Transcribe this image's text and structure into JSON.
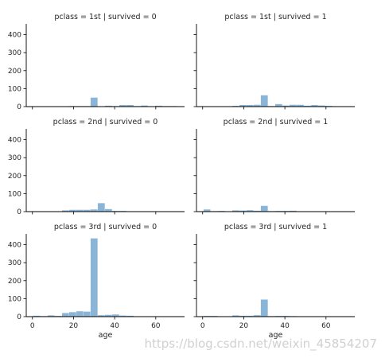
{
  "chart_data": {
    "type": "bar",
    "kind": "faceted-histogram",
    "xlabel": "age",
    "ylabel": "",
    "xlim": [
      -3,
      74
    ],
    "ylim": [
      0,
      460
    ],
    "xticks": [
      0,
      20,
      40,
      60
    ],
    "yticks": [
      0,
      100,
      200,
      300,
      400
    ],
    "bin_width": 3.5,
    "bin_edges": [
      0.42,
      3.9,
      7.4,
      10.9,
      14.4,
      17.9,
      21.4,
      24.8,
      28.3,
      31.8,
      35.3,
      38.8,
      42.3,
      45.8,
      49.3,
      52.8,
      56.2,
      59.7,
      63.2,
      66.7,
      70.2
    ],
    "bar_color": "#8ab5d6",
    "facets": [
      {
        "title": "pclass = 1st | survived = 0",
        "row": 0,
        "col": 0,
        "counts": [
          0,
          0,
          0,
          0,
          2,
          3,
          3,
          3,
          50,
          2,
          5,
          3,
          9,
          9,
          3,
          6,
          2,
          5,
          3,
          3
        ]
      },
      {
        "title": "pclass = 1st | survived = 1",
        "row": 0,
        "col": 1,
        "counts": [
          2,
          0,
          0,
          1,
          4,
          9,
          9,
          10,
          63,
          3,
          14,
          6,
          10,
          10,
          5,
          9,
          6,
          4,
          2,
          0
        ]
      },
      {
        "title": "pclass = 2nd | survived = 0",
        "row": 1,
        "col": 0,
        "counts": [
          0,
          0,
          0,
          0,
          7,
          10,
          10,
          10,
          12,
          47,
          14,
          4,
          4,
          2,
          1,
          2,
          0,
          0,
          0,
          0
        ]
      },
      {
        "title": "pclass = 2nd | survived = 1",
        "row": 1,
        "col": 1,
        "counts": [
          12,
          3,
          4,
          1,
          7,
          6,
          8,
          5,
          32,
          3,
          4,
          4,
          5,
          2,
          1,
          0,
          0,
          0,
          0,
          0
        ]
      },
      {
        "title": "pclass = 3rd | survived = 0",
        "row": 2,
        "col": 0,
        "counts": [
          5,
          3,
          7,
          4,
          20,
          25,
          30,
          28,
          435,
          8,
          10,
          12,
          6,
          5,
          2,
          2,
          1,
          0,
          0,
          0
        ]
      },
      {
        "title": "pclass = 3rd | survived = 1",
        "row": 2,
        "col": 1,
        "counts": [
          4,
          4,
          2,
          1,
          7,
          5,
          5,
          8,
          95,
          3,
          4,
          4,
          3,
          1,
          0,
          0,
          0,
          0,
          0,
          0
        ]
      }
    ]
  },
  "watermark": "https://blog.csdn.net/weixin_45854207"
}
